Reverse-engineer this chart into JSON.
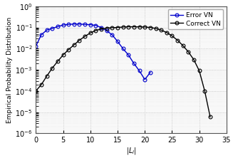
{
  "error_vn_x": [
    0,
    1,
    2,
    3,
    4,
    5,
    6,
    7,
    8,
    9,
    10,
    11,
    12,
    13,
    14,
    15,
    16,
    17,
    18,
    19,
    20,
    21
  ],
  "error_vn_y": [
    0.013,
    0.045,
    0.075,
    0.09,
    0.11,
    0.13,
    0.14,
    0.145,
    0.145,
    0.14,
    0.135,
    0.125,
    0.1,
    0.07,
    0.045,
    0.022,
    0.01,
    0.005,
    0.002,
    0.0009,
    0.00035,
    0.00075
  ],
  "correct_vn_x": [
    0,
    1,
    2,
    3,
    4,
    5,
    6,
    7,
    8,
    9,
    10,
    11,
    12,
    13,
    14,
    15,
    16,
    17,
    18,
    19,
    20,
    21,
    22,
    23,
    24,
    25,
    26,
    27,
    28,
    29,
    30,
    31,
    32
  ],
  "correct_vn_y": [
    0.0001,
    0.0002,
    0.0005,
    0.0012,
    0.0025,
    0.005,
    0.009,
    0.015,
    0.025,
    0.038,
    0.055,
    0.072,
    0.085,
    0.093,
    0.098,
    0.1,
    0.105,
    0.108,
    0.108,
    0.107,
    0.105,
    0.1,
    0.09,
    0.075,
    0.058,
    0.04,
    0.025,
    0.014,
    0.007,
    0.003,
    0.0009,
    0.0001,
    6e-06
  ],
  "error_color": "#0000cc",
  "correct_color": "#000000",
  "xlabel": "$|L_i|$",
  "ylabel": "Empirical Probability Distribution",
  "xlim": [
    0,
    35
  ],
  "ylim": [
    1e-06,
    1.0
  ],
  "xticks": [
    0,
    5,
    10,
    15,
    20,
    25,
    30,
    35
  ],
  "ytick_powers": [
    -6,
    -5,
    -4,
    -3,
    -2,
    -1,
    0
  ],
  "legend_error": "Error VN",
  "legend_correct": "Correct VN",
  "bg_color": "#f8f8f8",
  "grid_color": "#c0c0c0",
  "figsize": [
    3.27,
    2.22
  ],
  "dpi": 100
}
